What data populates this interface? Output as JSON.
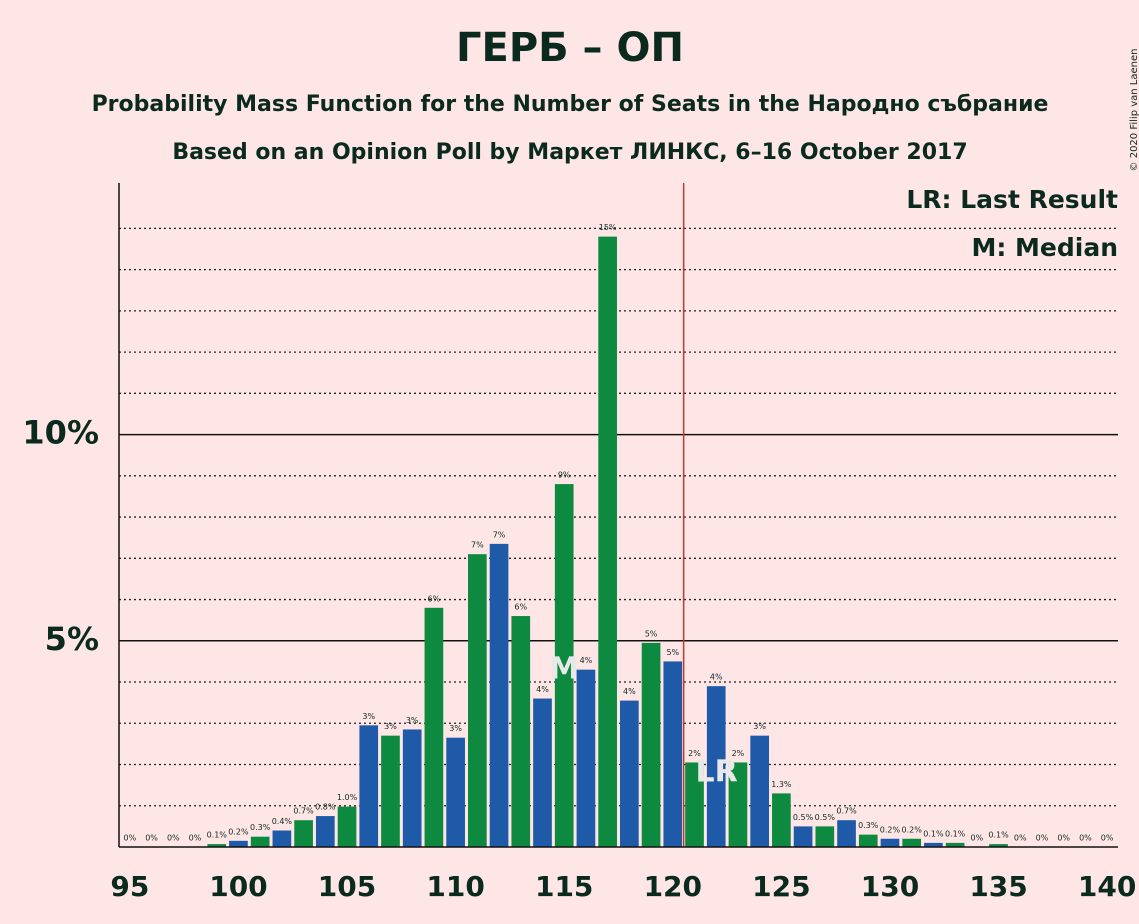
{
  "chart_data": {
    "type": "bar",
    "title": "ГЕРБ – ОП",
    "subtitle": "Probability Mass Function for the Number of Seats in the Народно събрание",
    "subtitle2": "Based on an Opinion Poll by Маркет ЛИНКС, 6–16 October 2017",
    "legend_last_result": "LR: Last Result",
    "legend_median": "M: Median",
    "copyright": "© 2020 Filip van Laenen",
    "x": [
      95,
      96,
      97,
      98,
      99,
      100,
      101,
      102,
      103,
      104,
      105,
      106,
      107,
      108,
      109,
      110,
      111,
      112,
      113,
      114,
      115,
      116,
      117,
      118,
      119,
      120,
      121,
      122,
      123,
      124,
      125,
      126,
      127,
      128,
      129,
      130,
      131,
      132,
      133,
      134,
      135,
      136,
      137,
      138,
      139,
      140
    ],
    "values": [
      0,
      0,
      0,
      0,
      0.07,
      0.15,
      0.25,
      0.4,
      0.65,
      0.75,
      0.98,
      2.95,
      2.7,
      2.85,
      5.8,
      2.65,
      7.1,
      7.35,
      5.6,
      3.6,
      8.8,
      4.3,
      14.8,
      3.55,
      4.95,
      4.5,
      2.05,
      3.9,
      2.05,
      2.7,
      1.3,
      0.5,
      0.5,
      0.65,
      0.3,
      0.2,
      0.2,
      0.1,
      0.1,
      0,
      0.07,
      0,
      0,
      0,
      0,
      0
    ],
    "value_labels": [
      "0%",
      "0%",
      "0%",
      "0%",
      "0.1%",
      "0.2%",
      "0.3%",
      "0.4%",
      "0.7%",
      "0.8%",
      "1.0%",
      "3%",
      "3%",
      "3%",
      "6%",
      "3%",
      "7%",
      "7%",
      "6%",
      "4%",
      "9%",
      "4%",
      "15%",
      "4%",
      "5%",
      "5%",
      "2%",
      "4%",
      "2%",
      "3%",
      "1.3%",
      "0.5%",
      "0.5%",
      "0.7%",
      "0.3%",
      "0.2%",
      "0.2%",
      "0.1%",
      "0.1%",
      "0%",
      "0.1%",
      "0%",
      "0%",
      "0%",
      "0%",
      "0%"
    ],
    "colors": [
      "#0d8a3f",
      "#1f5aa8"
    ],
    "xlim": [
      94.5,
      140.5
    ],
    "xticks": [
      95,
      100,
      105,
      110,
      115,
      120,
      125,
      130,
      135,
      140
    ],
    "ylim": [
      0,
      16.1
    ],
    "yticks": [
      {
        "value": 5,
        "label": "5%"
      },
      {
        "value": 10,
        "label": "10%"
      }
    ],
    "minor_gridlines": [
      1,
      2,
      3,
      4,
      6,
      7,
      8,
      9,
      11,
      12,
      13,
      14,
      15
    ],
    "median": 115,
    "median_marker": "M",
    "last_result_line": 120.5,
    "last_result_marker": "LR",
    "last_result_color": "#c0392b"
  }
}
